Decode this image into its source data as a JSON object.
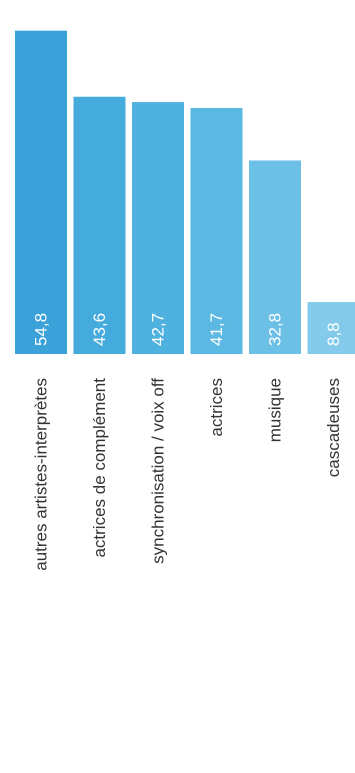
{
  "chart_data": {
    "type": "bar",
    "orientation": "vertical, rotated text",
    "categories": [
      "autres artistes-interprètes",
      "actrices de complément",
      "synchronisation / voix off",
      "actrices",
      "musique",
      "cascadeuses"
    ],
    "values": [
      54.8,
      43.6,
      42.7,
      41.7,
      32.8,
      8.8
    ],
    "value_labels": [
      "54,8",
      "43,6",
      "42,7",
      "41,7",
      "32,8",
      "8,8"
    ],
    "colors": [
      "#3aa2d8",
      "#45aadc",
      "#4fb1df",
      "#5ab8e2",
      "#6cc0e6",
      "#84cbeb"
    ],
    "title": "",
    "xlabel": "",
    "ylabel": "",
    "ylim": [
      0,
      60
    ],
    "grid": false,
    "legend": "none"
  }
}
